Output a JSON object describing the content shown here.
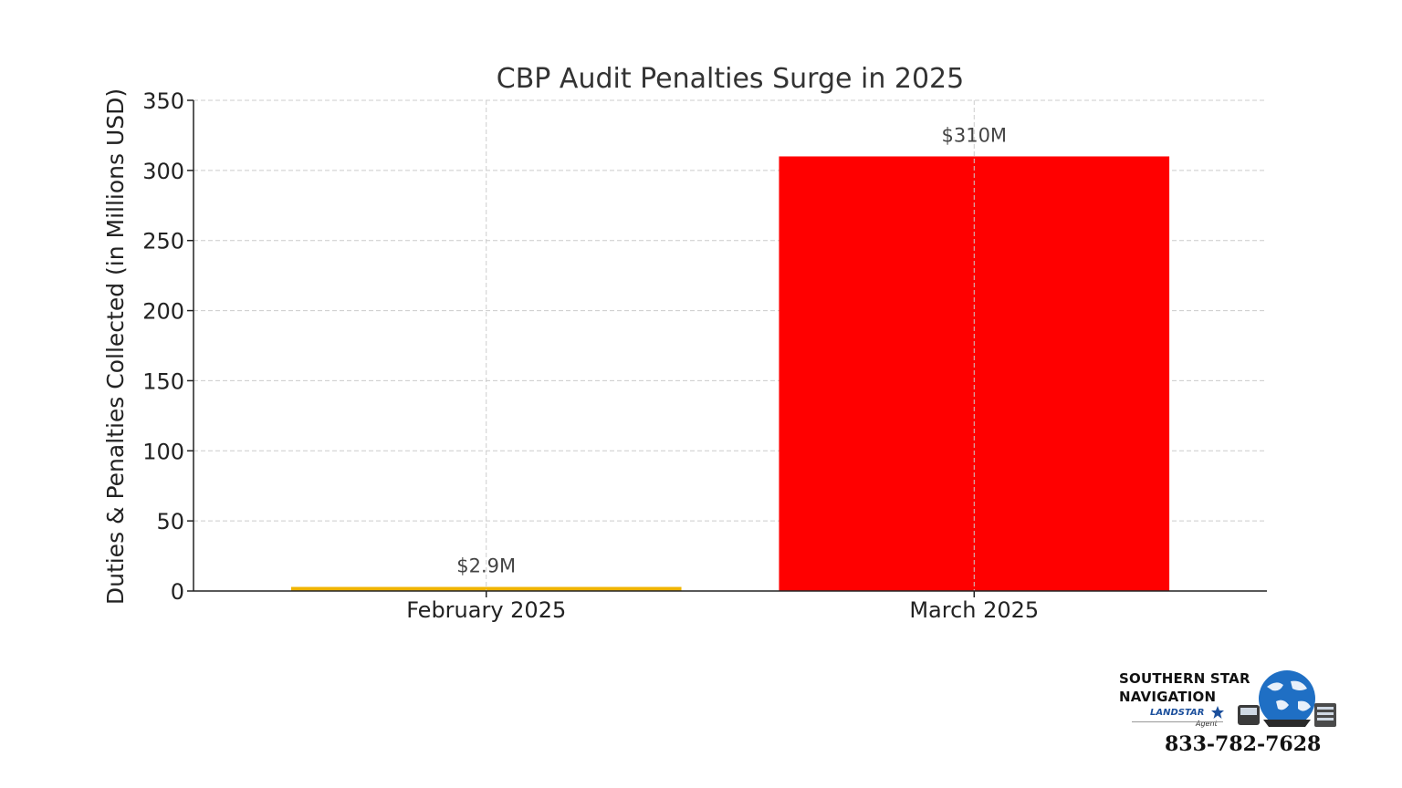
{
  "chart_data": {
    "type": "bar",
    "title": "CBP Audit Penalties Surge in 2025",
    "xlabel": "",
    "ylabel": "Duties & Penalties Collected (in Millions USD)",
    "categories": [
      "February 2025",
      "March 2025"
    ],
    "values": [
      2.9,
      310
    ],
    "data_labels": [
      "$2.9M",
      "$310M"
    ],
    "colors": [
      "#f0b400",
      "#ff0000"
    ],
    "ylim": [
      0,
      350
    ],
    "yticks": [
      0,
      50,
      100,
      150,
      200,
      250,
      300,
      350
    ],
    "grid": true
  },
  "branding": {
    "line1": "SOUTHERN STAR",
    "line2": "NAVIGATION",
    "sub": "LANDSTAR",
    "agent": "Agent",
    "phone": "833-782-7628"
  }
}
